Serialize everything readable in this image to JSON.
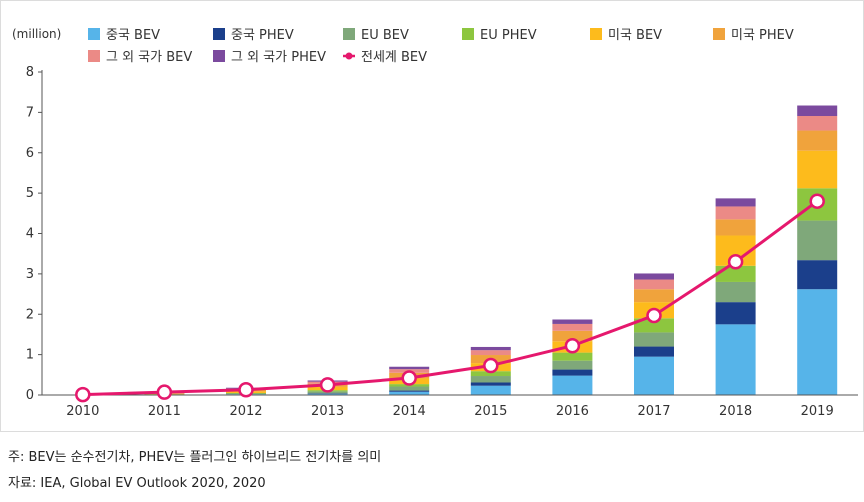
{
  "chart_data": {
    "type": "bar",
    "subtype": "stacked-bar-with-line",
    "ylabel": "(million)",
    "ylim": [
      0,
      8
    ],
    "yticks": [
      0,
      1,
      2,
      3,
      4,
      5,
      6,
      7,
      8
    ],
    "categories": [
      "2010",
      "2011",
      "2012",
      "2013",
      "2014",
      "2015",
      "2016",
      "2017",
      "2018",
      "2019"
    ],
    "series": [
      {
        "name": "중국 BEV",
        "color": "#56b4e9",
        "values": [
          0.0,
          0.01,
          0.02,
          0.03,
          0.08,
          0.23,
          0.48,
          0.95,
          1.75,
          2.62
        ]
      },
      {
        "name": "중국 PHEV",
        "color": "#1b3f8b",
        "values": [
          0.0,
          0.0,
          0.0,
          0.01,
          0.03,
          0.08,
          0.15,
          0.25,
          0.55,
          0.72
        ]
      },
      {
        "name": "EU BEV",
        "color": "#7fa87a",
        "values": [
          0.0,
          0.01,
          0.02,
          0.05,
          0.1,
          0.16,
          0.22,
          0.35,
          0.5,
          0.98
        ]
      },
      {
        "name": "EU PHEV",
        "color": "#8dc63f",
        "values": [
          0.0,
          0.0,
          0.01,
          0.03,
          0.06,
          0.12,
          0.2,
          0.35,
          0.4,
          0.8
        ]
      },
      {
        "name": "미국 BEV",
        "color": "#fdbb1c",
        "values": [
          0.0,
          0.01,
          0.04,
          0.08,
          0.14,
          0.2,
          0.28,
          0.4,
          0.75,
          0.93
        ]
      },
      {
        "name": "미국 PHEV",
        "color": "#f0a33c",
        "values": [
          0.0,
          0.01,
          0.04,
          0.08,
          0.14,
          0.2,
          0.26,
          0.32,
          0.4,
          0.5
        ]
      },
      {
        "name": "그 외 국가 BEV",
        "color": "#eb8a86",
        "values": [
          0.0,
          0.01,
          0.03,
          0.05,
          0.09,
          0.12,
          0.17,
          0.24,
          0.32,
          0.36
        ]
      },
      {
        "name": "그 외 국가 PHEV",
        "color": "#7b4a9e",
        "values": [
          0.0,
          0.0,
          0.02,
          0.03,
          0.06,
          0.08,
          0.11,
          0.15,
          0.2,
          0.26
        ]
      }
    ],
    "line_series": {
      "name": "전세계 BEV",
      "color": "#e5186d",
      "values": [
        0.01,
        0.07,
        0.13,
        0.25,
        0.42,
        0.73,
        1.22,
        1.97,
        3.3,
        4.8
      ]
    },
    "legend_position": "top",
    "grid": false
  },
  "footnotes": {
    "note": "주: BEV는 순수전기차, PHEV는 플러그인 하이브리드 전기차를 의미",
    "source": "자료: IEA, Global EV Outlook 2020, 2020"
  }
}
